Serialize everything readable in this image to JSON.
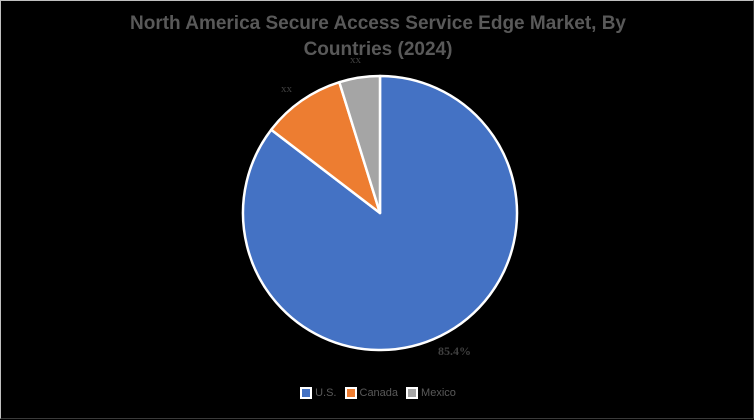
{
  "chart": {
    "title_line1": "North America Secure Access Service Edge Market, By",
    "title_line2": "Countries (2024)"
  },
  "labels": {
    "us": "85.4%",
    "canada": "xx",
    "mexico": "xx"
  },
  "legend": [
    {
      "label": "U.S.",
      "color": "#4472c4"
    },
    {
      "label": "Canada",
      "color": "#ed7d31"
    },
    {
      "label": "Mexico",
      "color": "#a5a5a5"
    }
  ],
  "chart_data": {
    "type": "pie",
    "title": "North America Secure Access Service Edge Market, By Countries (2024)",
    "categories": [
      "U.S.",
      "Canada",
      "Mexico"
    ],
    "values": [
      85.4,
      9.8,
      4.8
    ],
    "data_labels": [
      "85.4%",
      "xx",
      "xx"
    ],
    "colors": [
      "#4472c4",
      "#ed7d31",
      "#a5a5a5"
    ],
    "legend_position": "bottom",
    "start_angle_deg": 0,
    "direction": "clockwise"
  }
}
